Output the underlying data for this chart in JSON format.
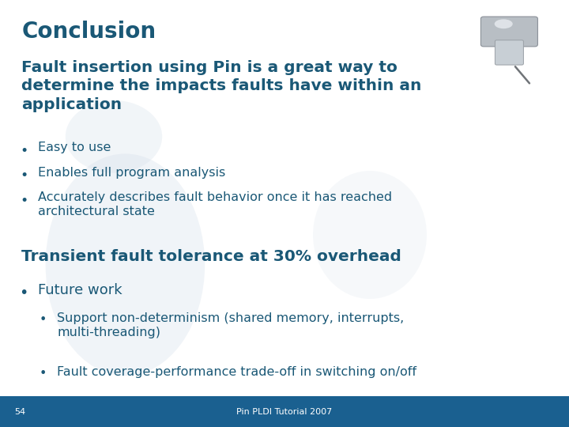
{
  "title": "Conclusion",
  "title_color": "#1a5876",
  "slide_bg": "#ffffff",
  "footer_bg": "#1a6090",
  "footer_text": "Pin PLDI Tutorial 2007",
  "footer_slide_num": "54",
  "footer_color": "#ffffff",
  "footer_fontsize": 8,
  "heading1": "Fault insertion using Pin is a great way to\ndetermine the impacts faults have within an\napplication",
  "heading1_color": "#1a5876",
  "heading1_fontsize": 14.5,
  "bullets1": [
    "Easy to use",
    "Enables full program analysis",
    "Accurately describes fault behavior once it has reached\narchitectural state"
  ],
  "bullets1_color": "#1a5876",
  "bullets1_fontsize": 11.5,
  "heading2": "Transient fault tolerance at 30% overhead",
  "heading2_color": "#1a5876",
  "heading2_fontsize": 14.5,
  "bullet2_main": "Future work",
  "bullet2_main_color": "#1a5876",
  "bullet2_main_fontsize": 13,
  "bullets2_sub": [
    "Support non-determinism (shared memory, interrupts,\nmulti-threading)",
    "Fault coverage-performance trade-off in switching on/off"
  ],
  "bullets2_sub_color": "#1a5876",
  "bullets2_sub_fontsize": 11.5,
  "watermark_color": "#d0dce8"
}
